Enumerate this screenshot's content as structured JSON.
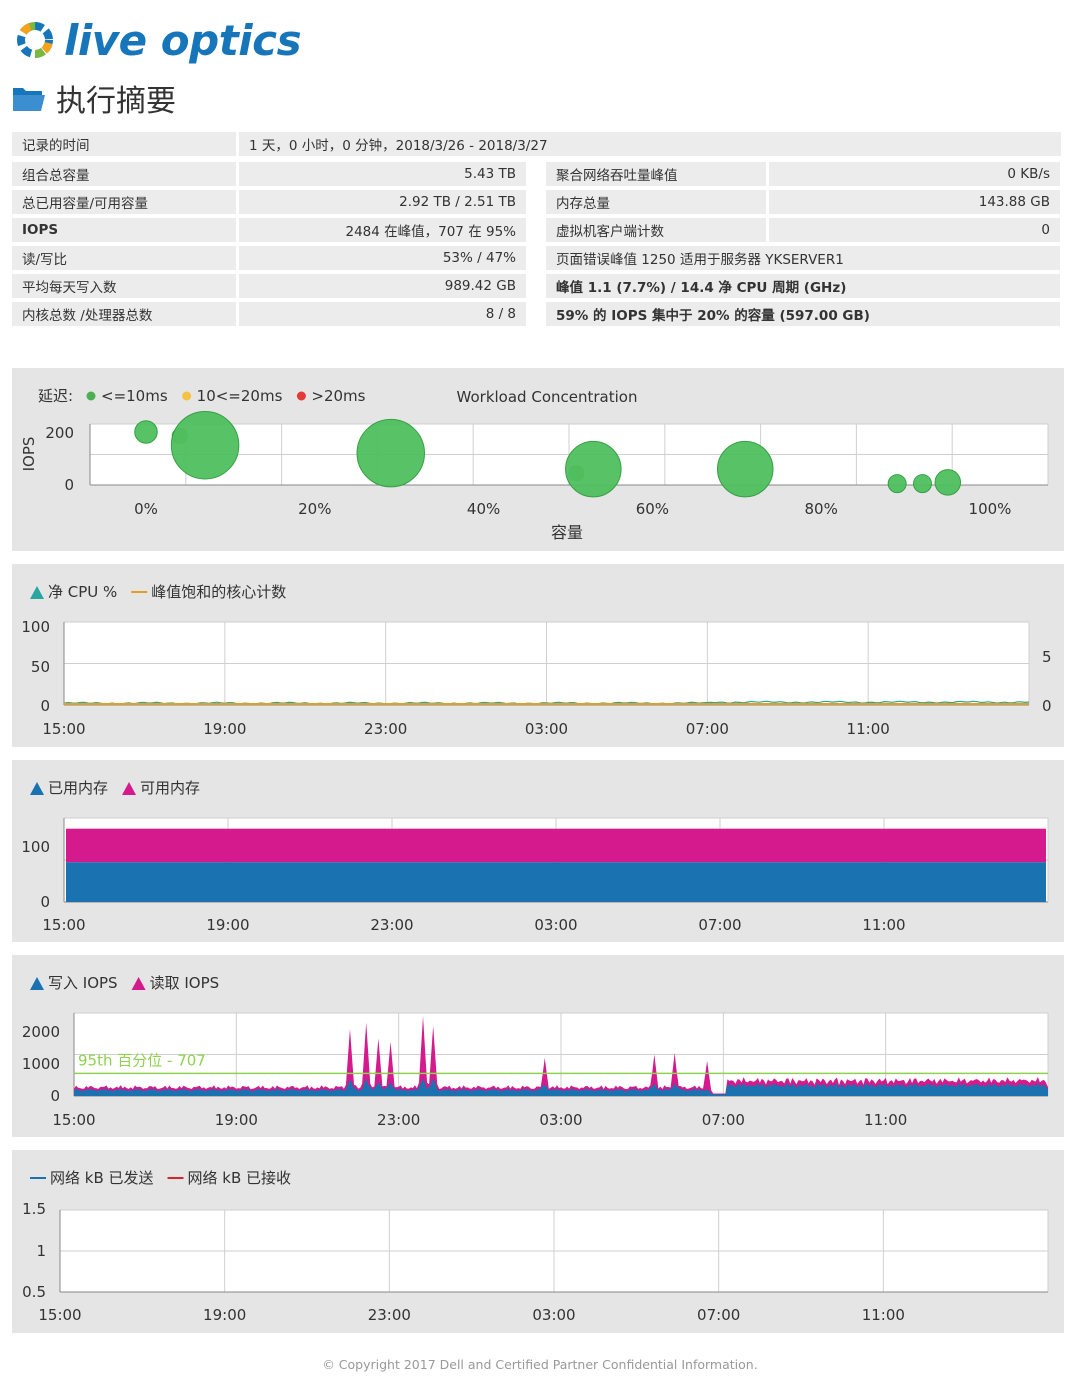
{
  "brand": {
    "logo_text": "live optics",
    "colors": {
      "blue": "#1776b9",
      "green": "#7ab83f",
      "orange": "#f4a21c"
    }
  },
  "page": {
    "title": "执行摘要",
    "icon": "folder-icon"
  },
  "summary": {
    "recorded_label": "记录的时间",
    "recorded_value": "1 天，0 小时，0 分钟，2018/3/26 - 2018/3/27",
    "left": [
      {
        "label": "组合总容量",
        "value": "5.43 TB"
      },
      {
        "label": "总已用容量/可用容量",
        "value": "2.92 TB / 2.51 TB"
      },
      {
        "label": "IOPS",
        "value": "2484 在峰值，707 在 95%"
      },
      {
        "label": "读/写比",
        "value": "53% / 47%"
      },
      {
        "label": "平均每天写入数",
        "value": "989.42 GB"
      },
      {
        "label": "内核总数 /处理器总数",
        "value": "8 / 8"
      }
    ],
    "right": [
      {
        "label": "聚合网络吞吐量峰值",
        "value": "0 KB/s"
      },
      {
        "label": "内存总量",
        "value": "143.88 GB"
      },
      {
        "label": "虚拟机客户端计数",
        "value": "0"
      },
      {
        "label": "页面错误峰值 1250 适用于服务器 YKSERVER1"
      },
      {
        "label": "峰值 1.1 (7.7%) / 14.4 净 CPU 周期 (GHz)"
      },
      {
        "label": "59% 的 IOPS 集中于 20% 的容量 (597.00 GB)"
      }
    ]
  },
  "footer": "© Copyright 2017 Dell and Certified Partner Confidential Information.",
  "chart_data": [
    {
      "type": "scatter",
      "title": "Workload Concentration",
      "legend_prefix": "延迟:",
      "legend": [
        {
          "label": "<=10ms",
          "color": "#4caf50"
        },
        {
          "label": "10<=20ms",
          "color": "#f5c242"
        },
        {
          "label": ">20ms",
          "color": "#e53935"
        }
      ],
      "xlabel": "容量",
      "ylabel": "IOPS",
      "x_ticks": [
        "0%",
        "20%",
        "40%",
        "60%",
        "80%",
        "100%"
      ],
      "y_ticks": [
        "0",
        "200"
      ],
      "xlim": [
        0,
        100
      ],
      "ylim": [
        0,
        230
      ],
      "points": [
        {
          "x": 0,
          "y": 200,
          "r": 1.5
        },
        {
          "x": 4,
          "y": 185,
          "r": 1
        },
        {
          "x": 7,
          "y": 150,
          "r": 4.5
        },
        {
          "x": 29,
          "y": 120,
          "r": 4.5
        },
        {
          "x": 51,
          "y": 45,
          "r": 1
        },
        {
          "x": 53,
          "y": 60,
          "r": 3.7
        },
        {
          "x": 71,
          "y": 60,
          "r": 3.7
        },
        {
          "x": 89,
          "y": 5,
          "r": 1.2
        },
        {
          "x": 92,
          "y": 5,
          "r": 1.2
        },
        {
          "x": 95,
          "y": 10,
          "r": 1.7
        }
      ],
      "grid": true
    },
    {
      "type": "line",
      "legend": [
        {
          "label": "净 CPU %",
          "color": "#2aa6a0",
          "marker": "triangle"
        },
        {
          "label": "峰值饱和的核心计数",
          "color": "#e0a020",
          "marker": "line"
        }
      ],
      "x_ticks": [
        "15:00",
        "19:00",
        "23:00",
        "03:00",
        "07:00",
        "11:00"
      ],
      "y_ticks": [
        "0",
        "50",
        "100"
      ],
      "y2_ticks": [
        "0",
        "5"
      ],
      "ylim": [
        0,
        100
      ],
      "y2lim": [
        0,
        8
      ],
      "series": [
        {
          "name": "净 CPU %",
          "level": 1
        },
        {
          "name": "峰值饱和的核心计数",
          "level": 0
        }
      ],
      "grid": true
    },
    {
      "type": "area",
      "legend": [
        {
          "label": "已用内存",
          "color": "#1a72b0",
          "marker": "triangle"
        },
        {
          "label": "可用内存",
          "color": "#d41a8c",
          "marker": "triangle"
        }
      ],
      "x_ticks": [
        "15:00",
        "19:00",
        "23:00",
        "03:00",
        "07:00",
        "11:00"
      ],
      "y_ticks": [
        "0",
        "100"
      ],
      "ylim": [
        0,
        165
      ],
      "series": [
        {
          "name": "已用内存",
          "value": 78
        },
        {
          "name": "可用内存",
          "value": 66
        }
      ],
      "grid": true
    },
    {
      "type": "area",
      "legend": [
        {
          "label": "写入 IOPS",
          "color": "#1a72b0",
          "marker": "triangle"
        },
        {
          "label": "读取 IOPS",
          "color": "#d41a8c",
          "marker": "triangle"
        }
      ],
      "x_ticks": [
        "15:00",
        "19:00",
        "23:00",
        "03:00",
        "07:00",
        "11:00"
      ],
      "y_ticks": [
        "0",
        "1000",
        "2000"
      ],
      "ylim": [
        0,
        2600
      ],
      "percentile_label": "95th 百分位 - 707",
      "percentile_value": 707,
      "percentile_color": "#8fd14f",
      "spikes": [
        {
          "hour": 6.8,
          "value": 2100
        },
        {
          "hour": 7.2,
          "value": 2300
        },
        {
          "hour": 7.5,
          "value": 1800
        },
        {
          "hour": 7.8,
          "value": 1700
        },
        {
          "hour": 8.6,
          "value": 2500
        },
        {
          "hour": 8.85,
          "value": 2200
        },
        {
          "hour": 11.6,
          "value": 1200
        },
        {
          "hour": 14.3,
          "value": 1300
        },
        {
          "hour": 14.8,
          "value": 1350
        },
        {
          "hour": 15.6,
          "value": 1100
        }
      ],
      "grid": true
    },
    {
      "type": "line",
      "legend": [
        {
          "label": "网络 kB 已发送",
          "color": "#1a72b0",
          "marker": "line"
        },
        {
          "label": "网络 kB 已接收",
          "color": "#d9232e",
          "marker": "line"
        }
      ],
      "x_ticks": [
        "15:00",
        "19:00",
        "23:00",
        "03:00",
        "07:00",
        "11:00"
      ],
      "y_ticks": [
        "0.5",
        "1",
        "1.5"
      ],
      "ylim": [
        0.5,
        1.5
      ],
      "grid": true
    }
  ]
}
